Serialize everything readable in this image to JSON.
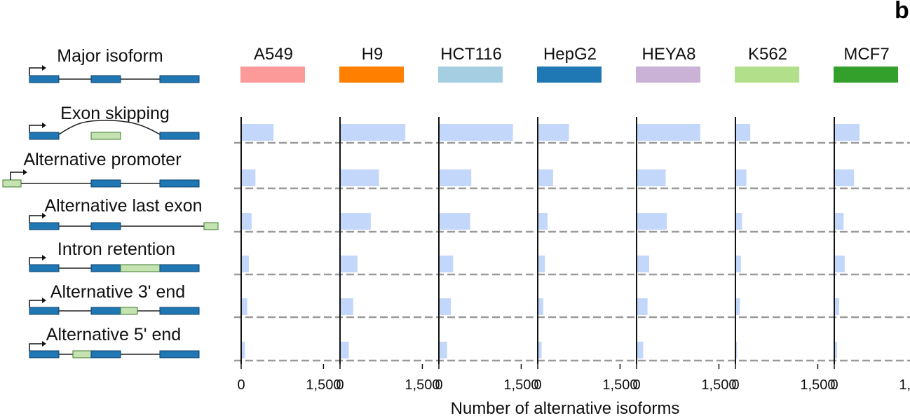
{
  "panel_letter": "b",
  "chart_data": {
    "type": "bar",
    "orientation": "horizontal",
    "xlabel": "Number of alternative isoforms",
    "xlim": [
      0,
      1750
    ],
    "xticks": [
      0,
      1500
    ],
    "xtick_labels": [
      "0",
      "1,500"
    ],
    "isoform_header": "Major isoform",
    "categories": [
      "Exon skipping",
      "Alternative promoter",
      "Alternative last exon",
      "Intron retention",
      "Alternative 3' end",
      "Alternative 5' end"
    ],
    "bar_color": "#c2d7fa",
    "series": [
      {
        "name": "A549",
        "color": "#fb9a99",
        "values": [
          590,
          260,
          190,
          140,
          110,
          70
        ]
      },
      {
        "name": "H9",
        "color": "#ff7f00",
        "values": [
          1190,
          710,
          560,
          320,
          240,
          160
        ]
      },
      {
        "name": "HCT116",
        "color": "#a6cee3",
        "values": [
          1350,
          590,
          570,
          260,
          220,
          150
        ]
      },
      {
        "name": "HepG2",
        "color": "#1f78b4",
        "values": [
          570,
          280,
          180,
          130,
          100,
          70
        ]
      },
      {
        "name": "HEYA8",
        "color": "#cab2d6",
        "values": [
          1160,
          530,
          550,
          230,
          200,
          120
        ]
      },
      {
        "name": "K562",
        "color": "#b2df8a",
        "values": [
          270,
          200,
          120,
          100,
          80,
          30
        ]
      },
      {
        "name": "MCF7",
        "color": "#33a02c",
        "values": [
          460,
          360,
          170,
          190,
          90,
          50
        ]
      }
    ]
  }
}
